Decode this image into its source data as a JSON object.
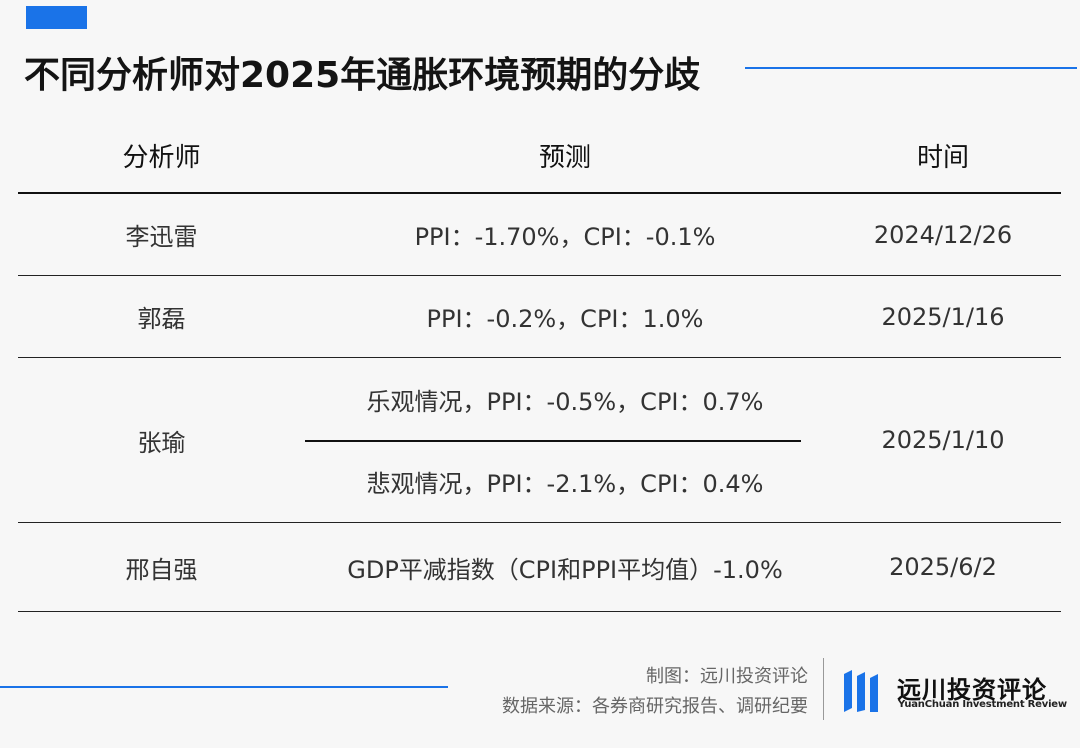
{
  "title": "不同分析师对2025年通胀环境预期的分歧",
  "colors": {
    "accent": "#1a73e8",
    "text": "#333333",
    "rule": "#111111"
  },
  "table": {
    "headers": [
      "分析师",
      "预测",
      "时间"
    ],
    "rows": [
      {
        "analyst": "李迅雷",
        "forecast": "PPI：-1.70%，CPI：-0.1%",
        "date": "2024/12/26"
      },
      {
        "analyst": "郭磊",
        "forecast": "PPI：-0.2%，CPI：1.0%",
        "date": "2025/1/16"
      },
      {
        "analyst": "张瑜",
        "forecast_optimistic": "乐观情况，PPI：-0.5%，CPI：0.7%",
        "forecast_pessimistic": "悲观情况，PPI：-2.1%，CPI：0.4%",
        "date": "2025/1/10"
      },
      {
        "analyst": "邢自强",
        "forecast": "GDP平减指数（CPI和PPI平均值）-1.0%",
        "date": "2025/6/2"
      }
    ]
  },
  "footer": {
    "made_by": "制图：远川投资评论",
    "source": "数据来源：各券商研究报告、调研纪要",
    "brand_cn": "远川投资评论",
    "brand_en": "YuanChuan Investment Review",
    "logo_icon": "brand-bars-icon"
  }
}
